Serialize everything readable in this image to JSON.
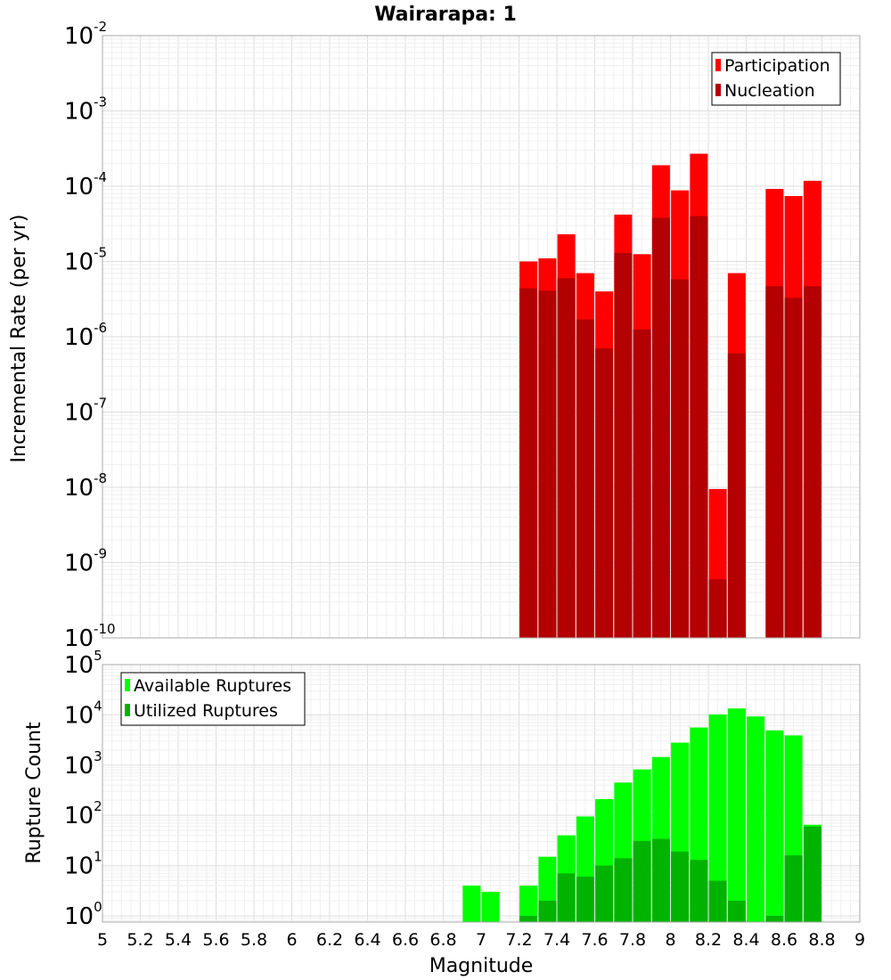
{
  "chart_data": [
    {
      "type": "bar",
      "title": "Wairarapa: 1",
      "xlabel": "",
      "ylabel": "Incremental Rate (per yr)",
      "y_scale": "log",
      "xlim": [
        5,
        9
      ],
      "ylim": [
        1e-10,
        0.01
      ],
      "grid": true,
      "legend_position": "top-right",
      "x": [
        7.25,
        7.35,
        7.45,
        7.55,
        7.65,
        7.75,
        7.85,
        7.95,
        8.05,
        8.15,
        8.25,
        8.35,
        8.45,
        8.55,
        8.65,
        8.75
      ],
      "series": [
        {
          "name": "Participation",
          "color": "#ff0000",
          "values": [
            1e-05,
            1.1e-05,
            2.3e-05,
            7e-06,
            4e-06,
            4.2e-05,
            1.25e-05,
            0.00019,
            8.8e-05,
            0.00027,
            9.5e-09,
            7e-06,
            null,
            9.2e-05,
            7.4e-05,
            0.000118
          ]
        },
        {
          "name": "Nucleation",
          "color": "#b30000",
          "values": [
            4.4e-06,
            4.1e-06,
            6e-06,
            1.7e-06,
            7e-07,
            1.3e-05,
            1.25e-06,
            3.8e-05,
            5.8e-06,
            4e-05,
            6e-10,
            6e-07,
            null,
            4.7e-06,
            3.3e-06,
            4.7e-06
          ]
        }
      ],
      "yticks": [
        {
          "base": "10",
          "exp": "-10"
        },
        {
          "base": "10",
          "exp": "-9"
        },
        {
          "base": "10",
          "exp": "-8"
        },
        {
          "base": "10",
          "exp": "-7"
        },
        {
          "base": "10",
          "exp": "-6"
        },
        {
          "base": "10",
          "exp": "-5"
        },
        {
          "base": "10",
          "exp": "-4"
        },
        {
          "base": "10",
          "exp": "-3"
        },
        {
          "base": "10",
          "exp": "-2"
        }
      ]
    },
    {
      "type": "bar",
      "title": "",
      "xlabel": "Magnitude",
      "ylabel": "Rupture Count",
      "y_scale": "log",
      "xlim": [
        5,
        9
      ],
      "ylim": [
        0.75,
        100000.0
      ],
      "grid": true,
      "legend_position": "top-left",
      "x": [
        6.95,
        7.05,
        7.25,
        7.35,
        7.45,
        7.55,
        7.65,
        7.75,
        7.85,
        7.95,
        8.05,
        8.15,
        8.25,
        8.35,
        8.45,
        8.55,
        8.65,
        8.75
      ],
      "series": [
        {
          "name": "Available Ruptures",
          "color": "#00ff00",
          "values": [
            4,
            3,
            4,
            15,
            40,
            95,
            210,
            450,
            820,
            1450,
            2800,
            5600,
            10200,
            13400,
            9300,
            4900,
            3900,
            65
          ]
        },
        {
          "name": "Utilized Ruptures",
          "color": "#00b300",
          "values": [
            null,
            null,
            1,
            2,
            7,
            6,
            10,
            14,
            31,
            34,
            19,
            13,
            5,
            2,
            null,
            1,
            16,
            60
          ]
        }
      ],
      "xticks": [
        "5",
        "5.2",
        "5.4",
        "5.6",
        "5.8",
        "6",
        "6.2",
        "6.4",
        "6.6",
        "6.8",
        "7",
        "7.2",
        "7.4",
        "7.6",
        "7.8",
        "8",
        "8.2",
        "8.4",
        "8.6",
        "8.8",
        "9"
      ],
      "yticks": [
        {
          "base": "10",
          "exp": "0"
        },
        {
          "base": "10",
          "exp": "1"
        },
        {
          "base": "10",
          "exp": "2"
        },
        {
          "base": "10",
          "exp": "3"
        },
        {
          "base": "10",
          "exp": "4"
        },
        {
          "base": "10",
          "exp": "5"
        }
      ]
    }
  ]
}
